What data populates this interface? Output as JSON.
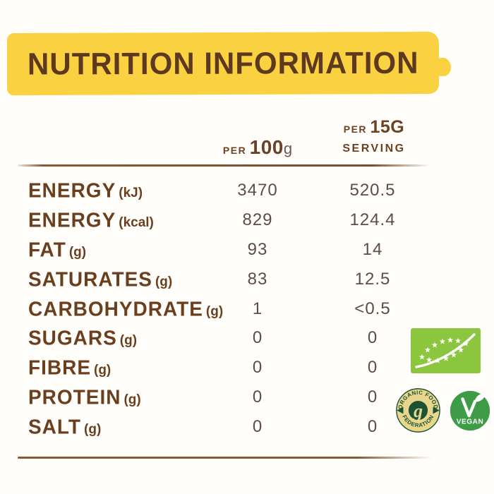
{
  "banner": {
    "title": "NUTRITION INFORMATION",
    "bg_color": "#FAD140",
    "text_color": "#5D3920"
  },
  "table": {
    "columns": [
      {
        "prefix": "PER",
        "amount": "100",
        "suffix": "g"
      },
      {
        "prefix": "PER",
        "amount": "15G",
        "line2": "SERVING"
      }
    ],
    "rows": [
      {
        "label": "ENERGY",
        "unit": "(kJ)",
        "per100": "3470",
        "per15": "520.5"
      },
      {
        "label": "ENERGY",
        "unit": "(kcal)",
        "per100": "829",
        "per15": "124.4"
      },
      {
        "label": "FAT",
        "unit": "(g)",
        "per100": "93",
        "per15": "14"
      },
      {
        "label": "SATURATES",
        "unit": "(g)",
        "per100": "83",
        "per15": "12.5"
      },
      {
        "label": "CARBOHYDRATE",
        "unit": "(g)",
        "per100": "1",
        "per15": "<0.5"
      },
      {
        "label": "SUGARS",
        "unit": "(g)",
        "per100": "0",
        "per15": "0"
      },
      {
        "label": "FIBRE",
        "unit": "(g)",
        "per100": "0",
        "per15": "0"
      },
      {
        "label": "PROTEIN",
        "unit": "(g)",
        "per100": "0",
        "per15": "0"
      },
      {
        "label": "SALT",
        "unit": "(g)",
        "per100": "0",
        "per15": "0"
      }
    ],
    "label_color": "#6B3F1D",
    "value_color": "#5F4C44",
    "rule_color": "#8B5A33"
  },
  "badges": {
    "eu_organic": {
      "icon": "eu-organic-leaf-logo",
      "bg_color": "#8CC63F",
      "star_color": "#FFFFFF"
    },
    "organic_food_federation": {
      "icon": "organic-food-federation-badge",
      "top_text": "ORGANIC FOOD",
      "bottom_text": "FEDERATION",
      "center_glyph": "g",
      "green": "#1B5236",
      "gold": "#E8D68C"
    },
    "vegan": {
      "icon": "vegan-badge",
      "label": "VEGAN",
      "bg_color": "#3E9B46"
    }
  }
}
